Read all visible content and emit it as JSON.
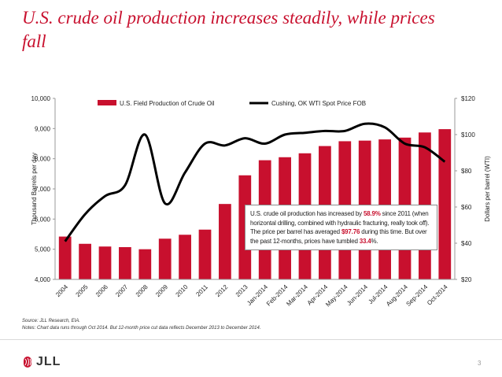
{
  "slide": {
    "title": "U.S. crude oil production increases steadily, while prices fall",
    "source": "Source: JLL Research, EIA.",
    "notes": "Notes: Chart data runs through Oct 2014. But 12-month price cut data reflects December 2013 to December 2014.",
    "page_number": "3",
    "logo_text": "JLL"
  },
  "callout": {
    "part1": "U.S. crude oil production has increased by ",
    "pct_increase": "58.9%",
    "part2": " since 2011 (when horizontal drilling, combined with hydraulic fracturing, really took off). The price per barrel has averaged ",
    "avg_price": "$97.76",
    "part3": " during this time. But over the past 12-months, prices have tumbled ",
    "pct_drop": "33.4",
    "part4": "%."
  },
  "colors": {
    "bar": "#c8102e",
    "line": "#000000",
    "title": "#c8102e",
    "highlight": "#c8102e"
  },
  "chart_data": {
    "type": "bar",
    "categories": [
      "2004",
      "2005",
      "2006",
      "2007",
      "2008",
      "2009",
      "2010",
      "2011",
      "2012",
      "2013",
      "Jan-2014",
      "Feb-2014",
      "Mar-2014",
      "Apr-2014",
      "May-2014",
      "Jun-2014",
      "Jul-2014",
      "Aug-2014",
      "Sep-2014",
      "Oct-2014"
    ],
    "series": [
      {
        "name": "U.S. Field Production of Crude Oil",
        "chart_type": "bar",
        "axis": "left",
        "values": [
          5420,
          5180,
          5090,
          5070,
          5000,
          5350,
          5480,
          5650,
          6500,
          7450,
          7950,
          8050,
          8180,
          8420,
          8580,
          8600,
          8640,
          8700,
          8870,
          8980
        ]
      },
      {
        "name": "Cushing, OK WTI Spot Price FOB",
        "chart_type": "line",
        "axis": "right",
        "values": [
          41,
          56,
          66,
          72,
          100,
          62,
          79,
          95,
          94,
          98,
          95,
          100,
          101,
          102,
          102,
          106,
          104,
          95,
          93,
          85
        ]
      }
    ],
    "left_axis": {
      "label": "Thousand Barrels per day",
      "ticks": [
        "4,000",
        "5,000",
        "6,000",
        "7,000",
        "8,000",
        "9,000",
        "10,000"
      ],
      "min": 4000,
      "max": 10000
    },
    "right_axis": {
      "label": "Dollars per barrel (WTI)",
      "ticks": [
        "$20",
        "$40",
        "$60",
        "$80",
        "$100",
        "$120"
      ],
      "min": 20,
      "max": 120
    },
    "legend_position": "top",
    "grid": false
  }
}
